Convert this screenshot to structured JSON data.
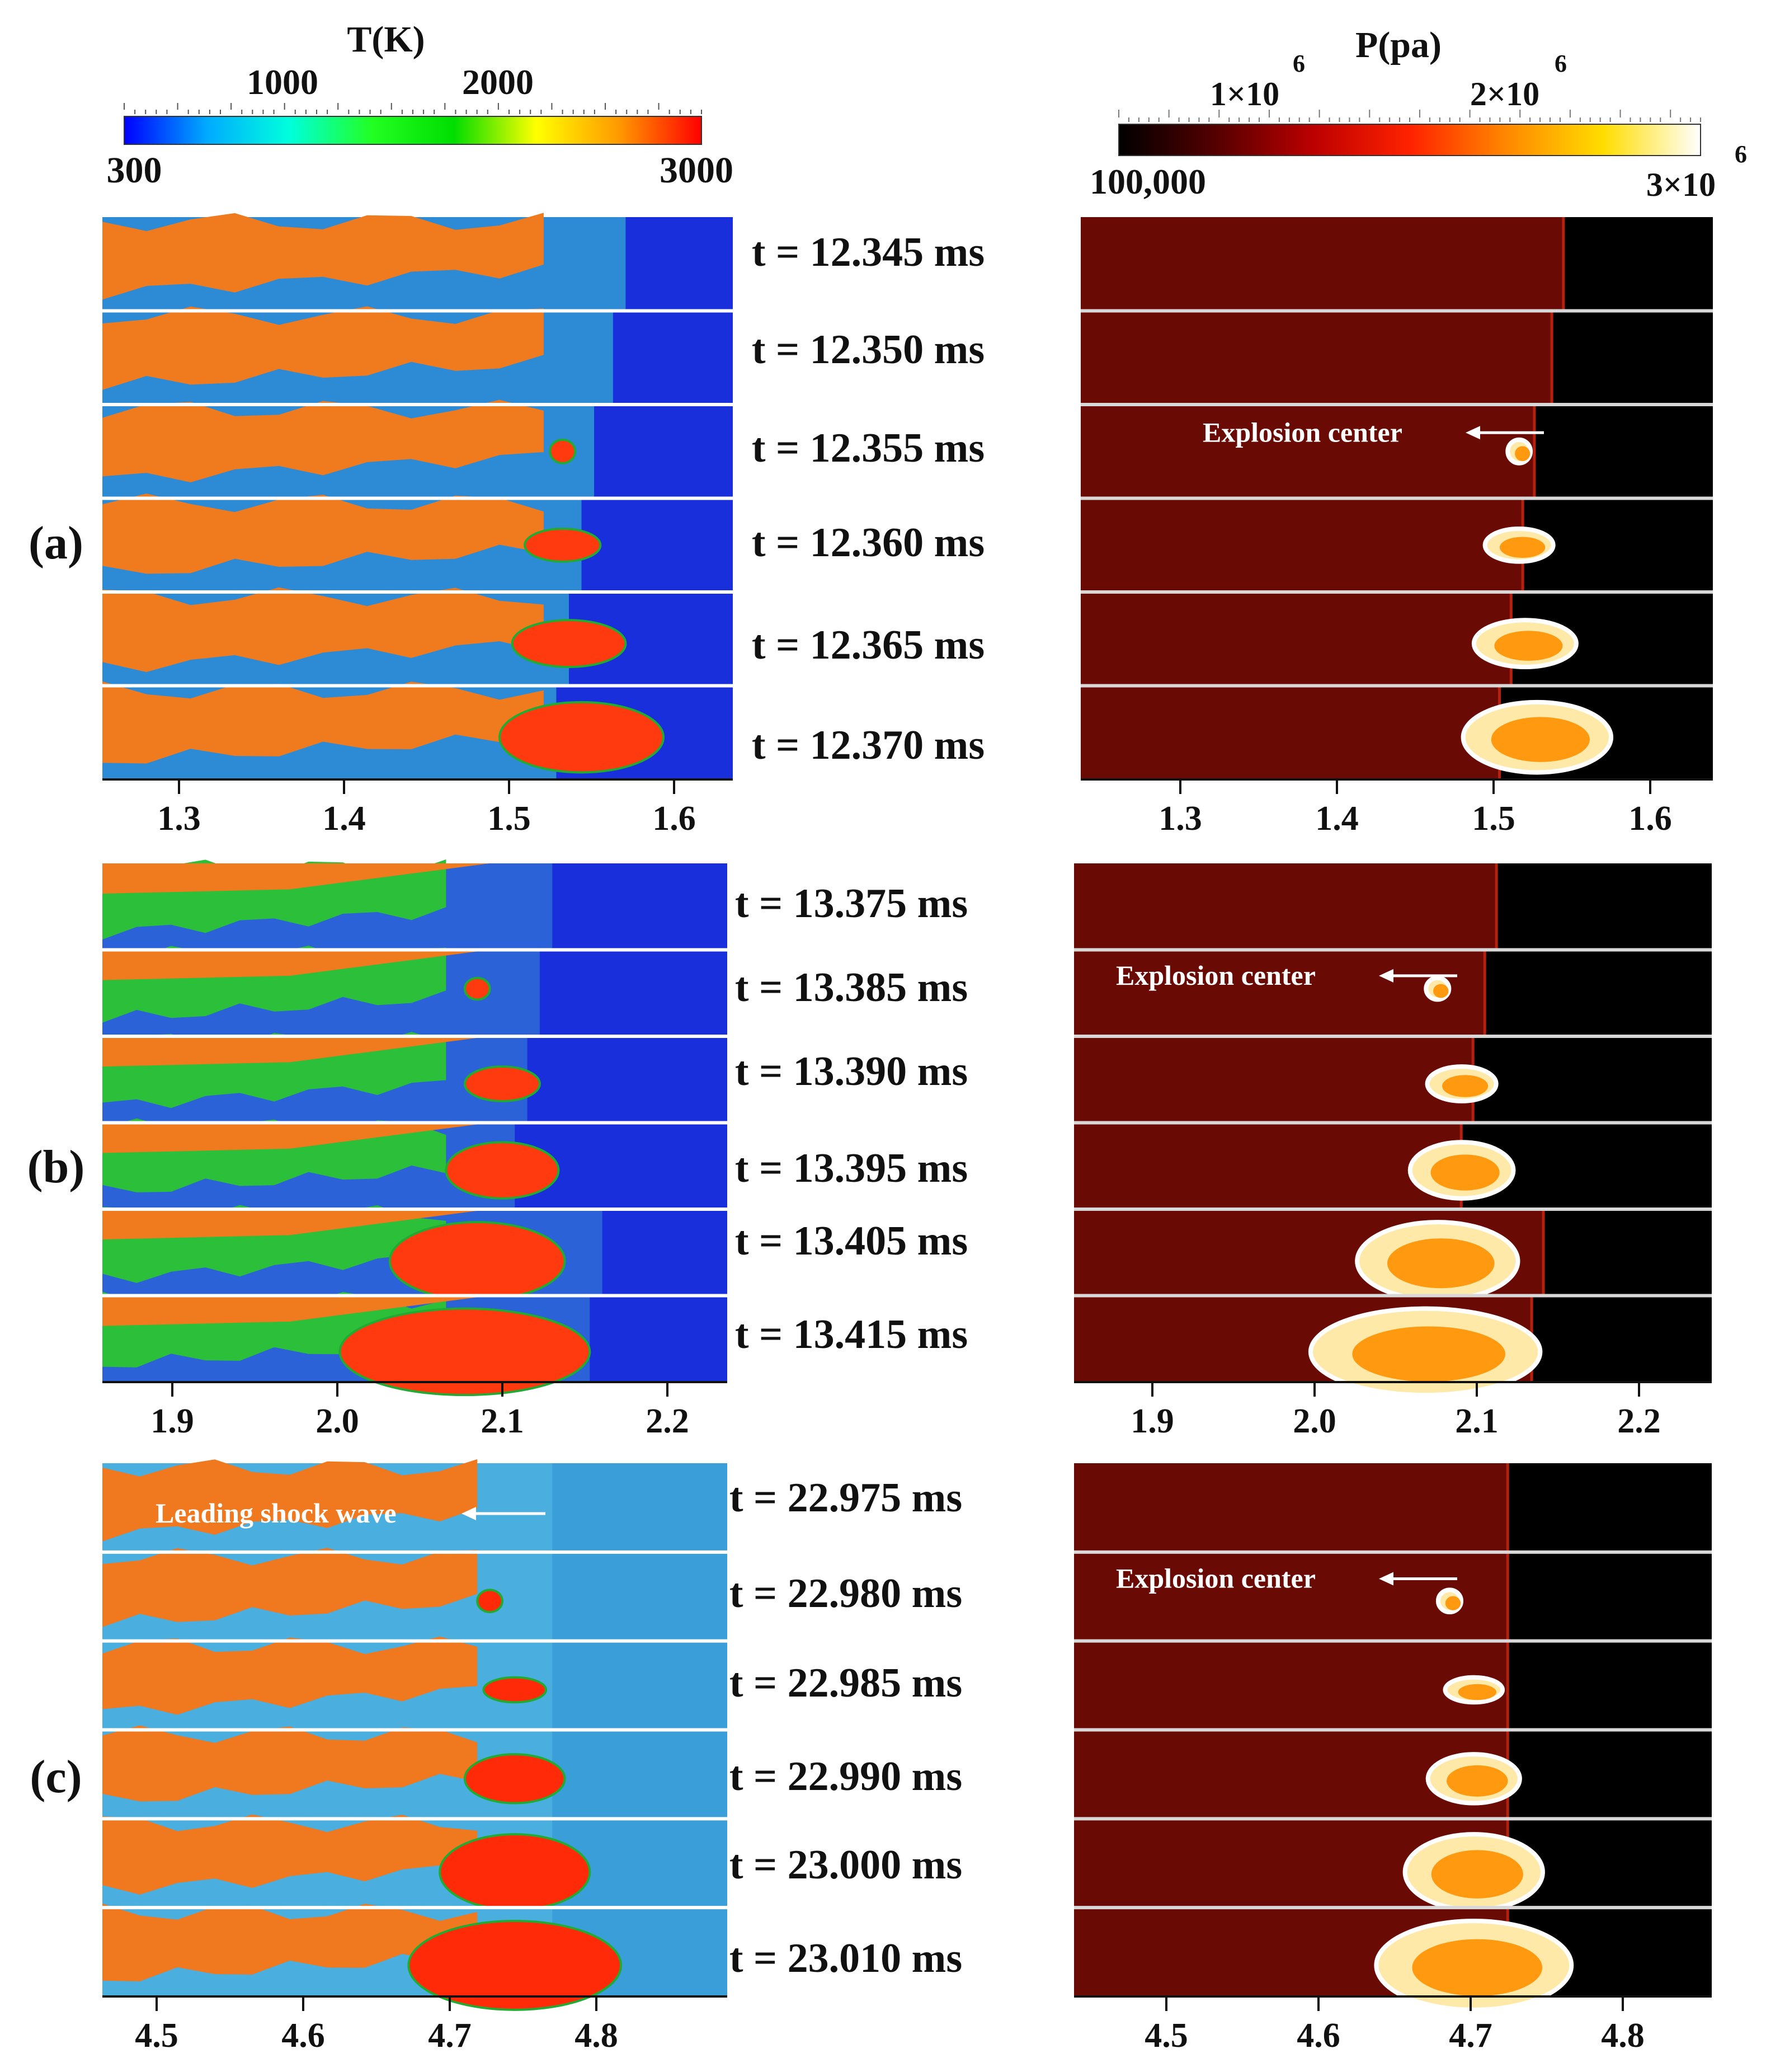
{
  "colorbars": {
    "temperature": {
      "title": "T(K)",
      "ticks_top": [
        "1000",
        "2000"
      ],
      "min_label": "300",
      "max_label": "3000",
      "stops": [
        "#0000ff",
        "#00aaff",
        "#00ffdd",
        "#22ff22",
        "#00dd00",
        "#ffff00",
        "#ff9900",
        "#ff0000"
      ]
    },
    "pressure": {
      "title": "P(pa)",
      "tick1_base": "1×10",
      "tick2_base": "2×10",
      "exp": "6",
      "min_label": "100,000",
      "max_base": "3×10",
      "stops": [
        "#000000",
        "#550000",
        "#bb0000",
        "#ff2200",
        "#ff8800",
        "#ffdd00",
        "#ffffff"
      ]
    }
  },
  "panels": [
    {
      "label": "(a)",
      "times": [
        "t = 12.345 ms",
        "t = 12.350 ms",
        "t = 12.355 ms",
        "t = 12.360 ms",
        "t = 12.365 ms",
        "t = 12.370 ms"
      ],
      "ticks": [
        "1.3",
        "1.4",
        "1.5",
        "1.6"
      ],
      "annotation_text": "Explosion center",
      "colors": {
        "burnt": "#f07a1e",
        "cold": "#1a2fdc",
        "mid": "#2d8bd6",
        "green": "#2bbf3a",
        "hot": "#ff3a0e"
      }
    },
    {
      "label": "(b)",
      "times": [
        "t = 13.375 ms",
        "t = 13.385 ms",
        "t = 13.390 ms",
        "t = 13.395 ms",
        "t = 13.405 ms",
        "t = 13.415 ms"
      ],
      "ticks": [
        "1.9",
        "2.0",
        "2.1",
        "2.2"
      ],
      "annotation_text": "Explosion center",
      "colors": {
        "burnt": "#2bbf3a",
        "cold": "#1a2fdc",
        "mid": "#2c62d8",
        "green": "#2bbf3a",
        "hot": "#ff3a0e"
      }
    },
    {
      "label": "(c)",
      "times": [
        "t = 22.975 ms",
        "t = 22.980 ms",
        "t = 22.985 ms",
        "t = 22.990 ms",
        "t = 23.000 ms",
        "t = 23.010 ms"
      ],
      "ticks": [
        "4.5",
        "4.6",
        "4.7",
        "4.8"
      ],
      "annotation_text": "Explosion center",
      "left_annotation_text": "Leading shock wave",
      "colors": {
        "burnt": "#f0781e",
        "cold": "#3a9fd8",
        "mid": "#4aaede",
        "green": "#2bbf3a",
        "hot": "#ff2a08"
      }
    }
  ]
}
